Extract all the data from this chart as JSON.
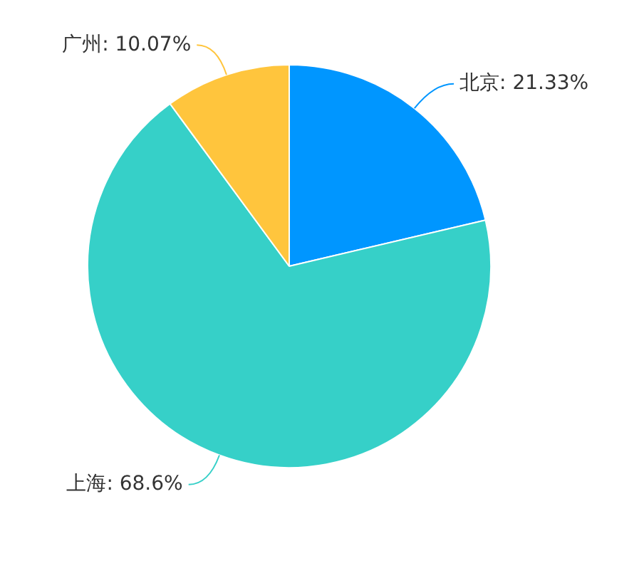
{
  "chart_data": {
    "type": "pie",
    "categories": [
      "北京",
      "上海",
      "广州"
    ],
    "values": [
      21.33,
      68.6,
      10.07
    ],
    "value_labels": [
      "21.33%",
      "68.6%",
      "10.07%"
    ],
    "colors": [
      "#0096ff",
      "#36d0c8",
      "#ffc53d"
    ],
    "legend": false
  }
}
